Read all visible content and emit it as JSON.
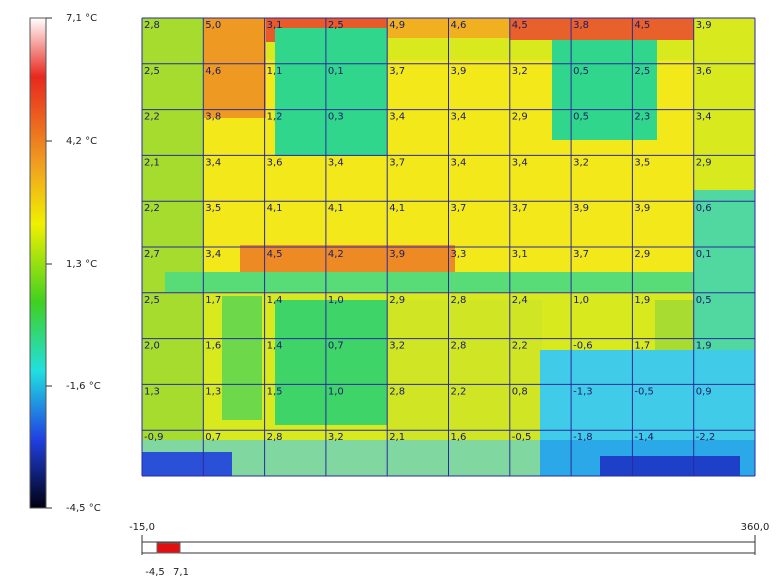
{
  "scale": {
    "labels": [
      "7,1 °C",
      "4,2 °C",
      "1,3 °C",
      "-1,6 °C",
      "-4,5 °C"
    ]
  },
  "grid": {
    "rows": [
      [
        "2,8",
        "5,0",
        "3,1",
        "2,5",
        "4,9",
        "4,6",
        "4,5",
        "3,8",
        "4,5",
        "3,9"
      ],
      [
        "2,5",
        "4,6",
        "1,1",
        "0,1",
        "3,7",
        "3,9",
        "3,2",
        "0,5",
        "2,5",
        "3,6"
      ],
      [
        "2,2",
        "3,8",
        "1,2",
        "0,3",
        "3,4",
        "3,4",
        "2,9",
        "0,5",
        "2,3",
        "3,4"
      ],
      [
        "2,1",
        "3,4",
        "3,6",
        "3,4",
        "3,7",
        "3,4",
        "3,4",
        "3,2",
        "3,5",
        "2,9"
      ],
      [
        "2,2",
        "3,5",
        "4,1",
        "4,1",
        "4,1",
        "3,7",
        "3,7",
        "3,9",
        "3,9",
        "0,6"
      ],
      [
        "2,7",
        "3,4",
        "4,5",
        "4,2",
        "3,9",
        "3,3",
        "3,1",
        "3,7",
        "2,9",
        "0,1"
      ],
      [
        "2,5",
        "1,7",
        "1,4",
        "1,0",
        "2,9",
        "2,8",
        "2,4",
        "1,0",
        "1,9",
        "0,5"
      ],
      [
        "2,0",
        "1,6",
        "1,4",
        "0,7",
        "3,2",
        "2,8",
        "2,2",
        "-0,6",
        "1,7",
        "1,9"
      ],
      [
        "1,3",
        "1,3",
        "1,5",
        "1,0",
        "2,8",
        "2,2",
        "0,8",
        "-1,3",
        "-0,5",
        "0,9"
      ],
      [
        "-0,9",
        "0,7",
        "2,8",
        "3,2",
        "2,1",
        "1,6",
        "-0,5",
        "-1,8",
        "-1,4",
        "-2,2"
      ]
    ]
  },
  "range": {
    "min": "-15,0",
    "max": "360,0",
    "low": "-4,5",
    "high": "7,1"
  }
}
